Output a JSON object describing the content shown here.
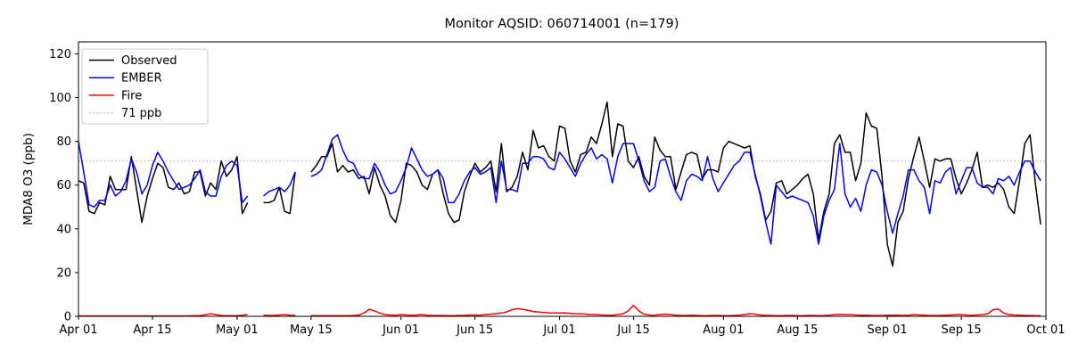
{
  "chart_data": {
    "type": "line",
    "title": "Monitor AQSID: 060714001 (n=179)",
    "ylabel": "MDA8 O3 (ppb)",
    "xlabel": "",
    "ylim": [
      0,
      125.5
    ],
    "yticks": [
      0,
      20,
      40,
      60,
      80,
      100,
      120
    ],
    "grid": "off",
    "x_days_total": 183,
    "x_note": "daily values from Apr 01 through Sep 30; null = missing day",
    "xticks": [
      {
        "day": 0,
        "label": "Apr 01"
      },
      {
        "day": 14,
        "label": "Apr 15"
      },
      {
        "day": 30,
        "label": "May 01"
      },
      {
        "day": 44,
        "label": "May 15"
      },
      {
        "day": 61,
        "label": "Jun 01"
      },
      {
        "day": 75,
        "label": "Jun 15"
      },
      {
        "day": 91,
        "label": "Jul 01"
      },
      {
        "day": 105,
        "label": "Jul 15"
      },
      {
        "day": 122,
        "label": "Aug 01"
      },
      {
        "day": 136,
        "label": "Aug 15"
      },
      {
        "day": 153,
        "label": "Sep 01"
      },
      {
        "day": 167,
        "label": "Sep 15"
      },
      {
        "day": 183,
        "label": "Oct 01"
      }
    ],
    "threshold": {
      "label": "71 ppb",
      "value": 71,
      "color": "#b5b5b5",
      "style": "dotted"
    },
    "legend": {
      "position": "upper-left",
      "items": [
        {
          "label": "Observed",
          "color": "#000000",
          "style": "solid"
        },
        {
          "label": "EMBER",
          "color": "#0000ff",
          "style": "solid"
        },
        {
          "label": "Fire",
          "color": "#ff0000",
          "style": "solid"
        },
        {
          "label": "71 ppb",
          "color": "#b5b5b5",
          "style": "dotted"
        }
      ]
    },
    "series": [
      {
        "name": "Observed",
        "color": "#000000",
        "values": [
          62,
          61,
          48,
          47,
          52,
          51,
          64,
          58,
          58,
          58,
          73,
          58,
          43,
          55,
          63,
          70,
          68,
          59,
          58,
          61,
          56,
          57,
          66,
          66,
          55,
          61,
          58,
          71,
          64,
          67,
          73,
          47,
          52,
          null,
          null,
          52,
          52,
          53,
          59,
          48,
          47,
          66,
          null,
          null,
          66,
          69,
          73,
          73,
          79,
          66,
          69,
          66,
          67,
          63,
          64,
          56,
          68,
          60,
          55,
          46,
          43,
          53,
          70,
          69,
          66,
          60,
          58,
          65,
          67,
          56,
          47,
          43,
          44,
          57,
          64,
          70,
          66,
          68,
          71,
          57,
          79,
          57,
          59,
          64,
          75,
          67,
          85,
          77,
          78,
          73,
          71,
          87,
          86,
          71,
          66,
          74,
          75,
          82,
          79,
          88,
          98,
          73,
          88,
          87,
          71,
          68,
          73,
          64,
          60,
          82,
          76,
          73,
          73,
          58,
          66,
          74,
          75,
          74,
          63,
          67,
          67,
          66,
          77,
          80,
          79,
          78,
          77,
          78,
          64,
          56,
          44,
          48,
          61,
          62,
          56,
          58,
          60,
          63,
          65,
          56,
          35,
          48,
          56,
          79,
          83,
          75,
          75,
          62,
          70,
          93,
          87,
          86,
          64,
          33,
          23,
          43,
          48,
          63,
          73,
          82,
          71,
          59,
          72,
          71,
          72,
          72,
          63,
          56,
          61,
          67,
          75,
          59,
          60,
          59,
          61,
          58,
          50,
          47,
          62,
          79,
          83,
          61,
          42
        ]
      },
      {
        "name": "EMBER",
        "color": "#0000ff",
        "values": [
          80,
          66,
          51,
          50,
          53,
          53,
          60,
          55,
          57,
          62,
          72,
          66,
          56,
          60,
          69,
          75,
          71,
          66,
          62,
          58,
          59,
          60,
          63,
          67,
          57,
          55,
          55,
          64,
          69,
          71,
          69,
          52,
          55,
          null,
          null,
          55,
          57,
          58,
          59,
          57,
          60,
          66,
          null,
          null,
          64,
          65,
          67,
          74,
          81,
          83,
          76,
          71,
          70,
          65,
          63,
          63,
          70,
          66,
          60,
          56,
          57,
          62,
          68,
          77,
          72,
          67,
          64,
          65,
          67,
          63,
          52,
          52,
          56,
          62,
          66,
          68,
          65,
          66,
          68,
          52,
          71,
          58,
          58,
          57,
          70,
          70,
          73,
          73,
          72,
          68,
          67,
          75,
          72,
          68,
          64,
          70,
          74,
          77,
          72,
          74,
          72,
          61,
          73,
          79,
          79,
          79,
          71,
          62,
          57,
          59,
          71,
          72,
          64,
          57,
          53,
          62,
          65,
          64,
          62,
          73,
          63,
          57,
          61,
          65,
          69,
          71,
          75,
          75,
          65,
          55,
          43,
          33,
          60,
          57,
          54,
          55,
          54,
          53,
          52,
          46,
          33,
          46,
          53,
          58,
          79,
          56,
          50,
          54,
          48,
          60,
          67,
          66,
          60,
          48,
          38,
          47,
          55,
          67,
          67,
          62,
          59,
          47,
          62,
          61,
          66,
          68,
          56,
          62,
          68,
          68,
          61,
          59,
          59,
          56,
          63,
          62,
          64,
          60,
          66,
          71,
          71,
          66,
          62
        ]
      },
      {
        "name": "Fire",
        "color": "#ff0000",
        "values": [
          0.2,
          0.2,
          0.2,
          0.2,
          0.2,
          0.2,
          0.2,
          0.2,
          0.2,
          0.2,
          0.2,
          0.2,
          0.2,
          0.2,
          0.2,
          0.2,
          0.2,
          0.2,
          0.2,
          0.2,
          0.2,
          0.2,
          0.3,
          0.3,
          0.7,
          1.2,
          0.8,
          0.4,
          0.3,
          0.3,
          0.3,
          0.5,
          0.8,
          null,
          null,
          0.5,
          0.4,
          0.4,
          0.6,
          0.8,
          0.5,
          0.4,
          null,
          null,
          0.3,
          0.3,
          0.3,
          0.3,
          0.3,
          0.3,
          0.3,
          0.3,
          0.4,
          0.5,
          1.5,
          3.2,
          2.5,
          1.5,
          0.8,
          0.6,
          0.5,
          0.8,
          0.6,
          0.5,
          0.6,
          0.8,
          0.5,
          0.4,
          0.4,
          0.4,
          0.3,
          0.3,
          0.4,
          0.4,
          0.6,
          0.6,
          0.5,
          0.8,
          1.0,
          1.2,
          1.5,
          2.0,
          3.0,
          3.5,
          3.2,
          2.8,
          2.2,
          2.0,
          1.8,
          1.6,
          1.5,
          1.5,
          1.6,
          1.4,
          1.2,
          1.2,
          1.0,
          0.8,
          0.8,
          0.6,
          0.5,
          0.5,
          0.8,
          1.2,
          2.5,
          5.0,
          2.5,
          1.0,
          0.6,
          0.5,
          0.8,
          1.0,
          0.8,
          0.5,
          0.4,
          0.4,
          0.5,
          0.4,
          0.3,
          0.3,
          0.4,
          0.4,
          0.3,
          0.3,
          0.4,
          0.5,
          0.8,
          1.2,
          1.0,
          0.6,
          0.4,
          0.4,
          0.3,
          0.3,
          0.4,
          0.4,
          0.3,
          0.3,
          0.4,
          0.4,
          0.3,
          0.4,
          0.5,
          0.8,
          0.9,
          0.8,
          0.8,
          0.6,
          0.5,
          0.5,
          0.4,
          0.4,
          0.4,
          0.5,
          0.5,
          0.5,
          0.4,
          0.5,
          0.8,
          0.6,
          0.5,
          0.4,
          0.4,
          0.4,
          0.5,
          0.6,
          0.8,
          0.8,
          0.6,
          0.5,
          0.6,
          0.8,
          1.2,
          3.0,
          3.3,
          1.5,
          0.8,
          0.6,
          0.5,
          0.4,
          0.4,
          0.3,
          0.3
        ]
      }
    ]
  }
}
